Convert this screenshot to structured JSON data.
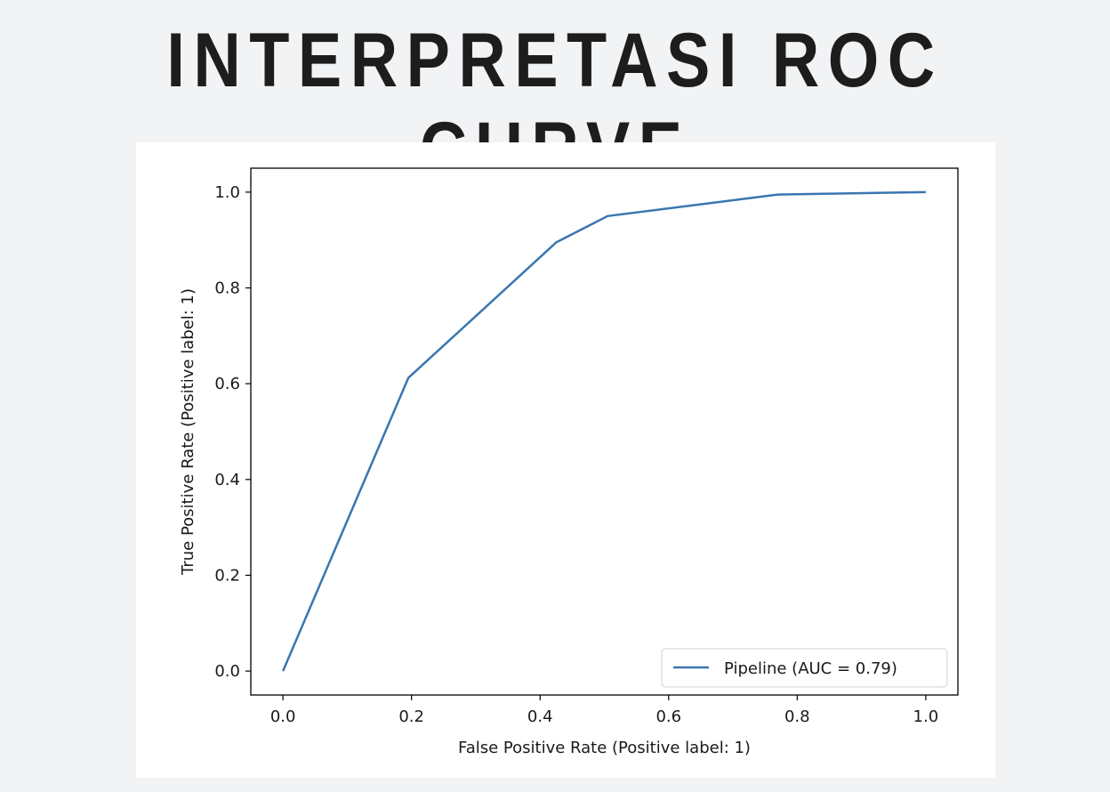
{
  "page": {
    "title": "INTERPRETASI ROC CURVE"
  },
  "chart_data": {
    "type": "line",
    "title": "",
    "xlabel": "False Positive Rate (Positive label: 1)",
    "ylabel": "True Positive Rate (Positive label: 1)",
    "xlim": [
      -0.05,
      1.05
    ],
    "ylim": [
      -0.05,
      1.05
    ],
    "xticks": [
      "0.0",
      "0.2",
      "0.4",
      "0.6",
      "0.8",
      "1.0"
    ],
    "yticks": [
      "0.0",
      "0.2",
      "0.4",
      "0.6",
      "0.8",
      "1.0"
    ],
    "grid": false,
    "legend_position": "lower-right",
    "series": [
      {
        "name": "Pipeline (AUC = 0.79)",
        "color": "#3a76b0",
        "x": [
          0.0,
          0.195,
          0.425,
          0.505,
          0.77,
          1.0
        ],
        "y": [
          0.0,
          0.612,
          0.895,
          0.95,
          0.995,
          1.0
        ]
      }
    ]
  }
}
